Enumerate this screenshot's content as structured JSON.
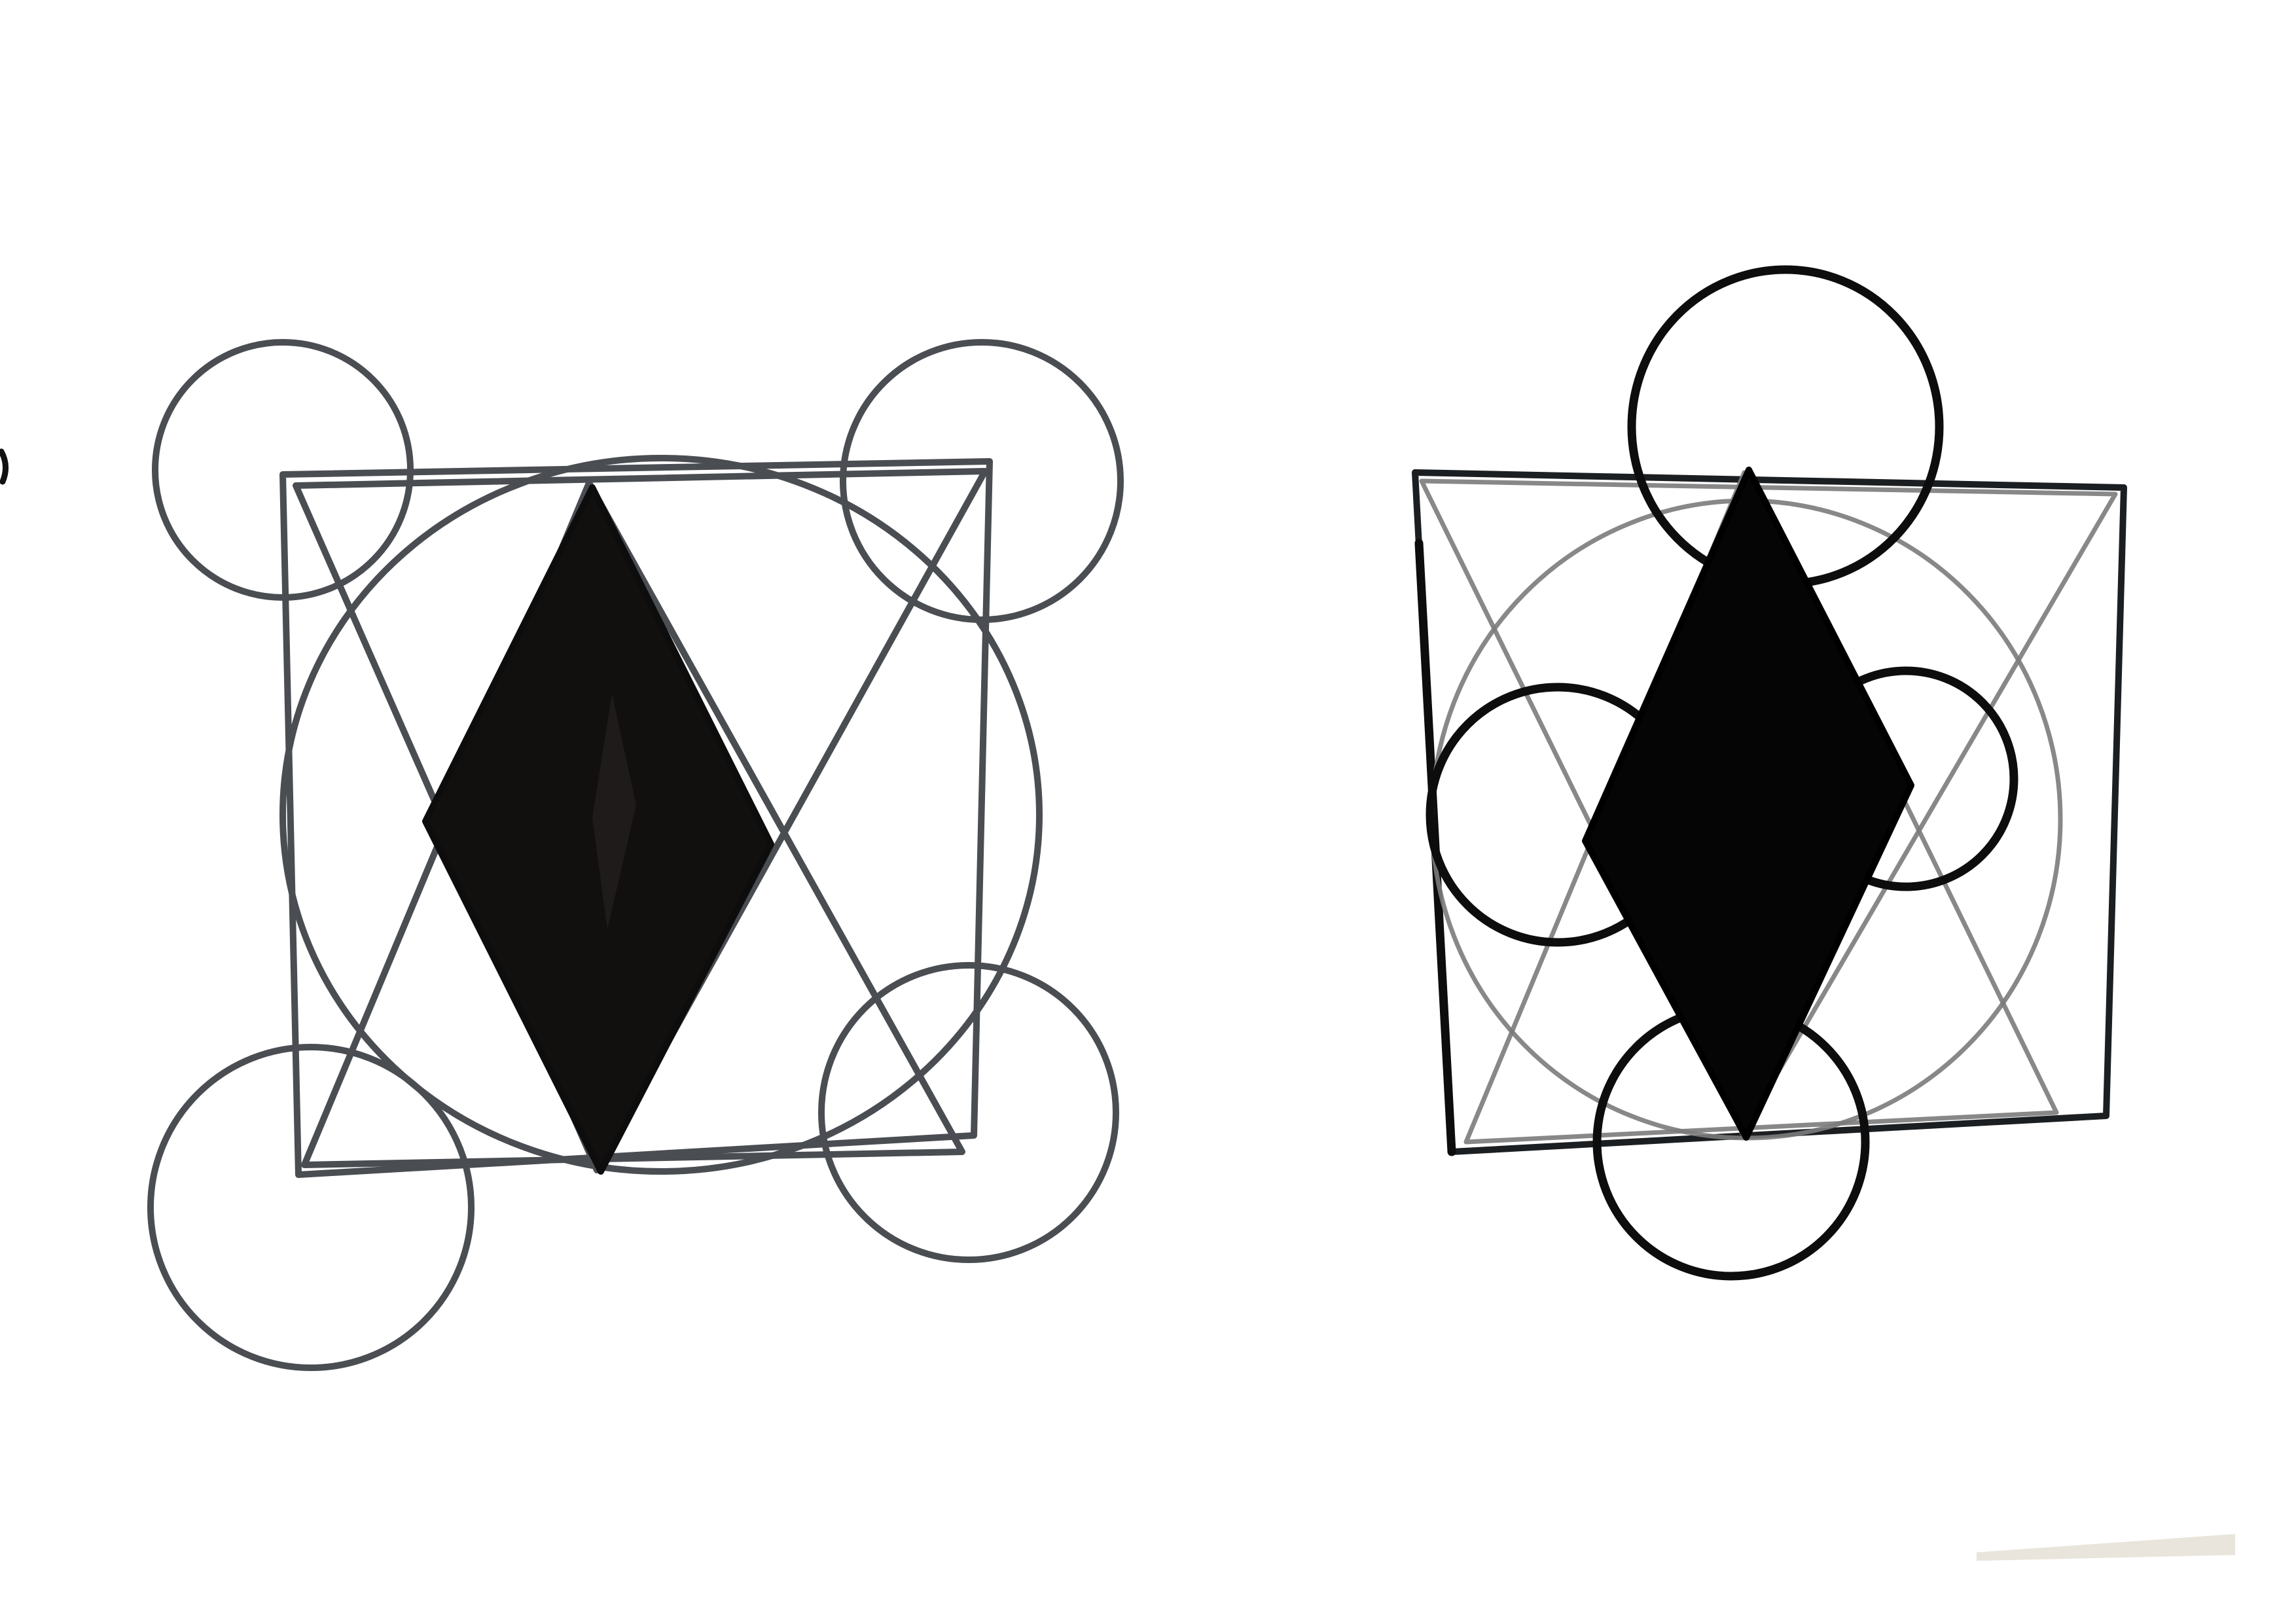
{
  "scene": {
    "background": "#ffffff",
    "ink_colors": {
      "marker_grey": "#4a4d52",
      "marker_black": "#0d0d0d",
      "pencil_grey": "#7b7b7b",
      "filled_diamond": "#120f0f"
    },
    "drawings": [
      {
        "name": "left-emblem",
        "elements": [
          "square-frame",
          "inscribed-circle",
          "crossing-triangles",
          "filled-diamond",
          "corner-circles"
        ],
        "corner_circle_count": 4
      },
      {
        "name": "right-emblem",
        "elements": [
          "square-frame",
          "pencil-circle",
          "crossing-triangles",
          "filled-diamond",
          "cross-circles"
        ],
        "cross_circle_count": 4
      }
    ]
  }
}
